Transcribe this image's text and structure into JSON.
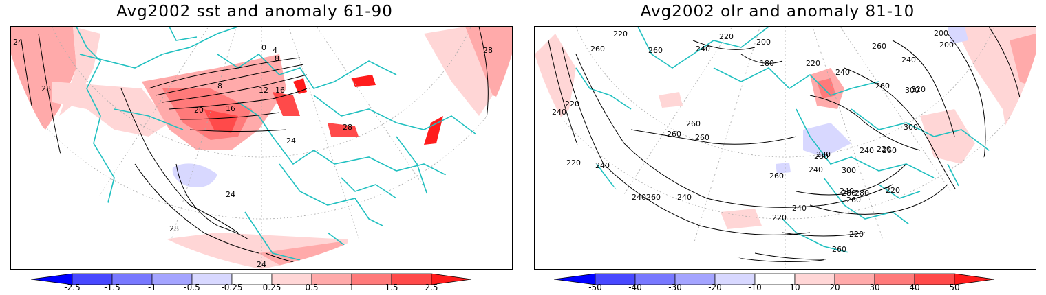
{
  "colors": {
    "coast": "#20c0c0",
    "contour": "#000000",
    "neg": [
      "#0000ff",
      "#4848ff",
      "#7878ff",
      "#a4a4ff",
      "#d8d8ff"
    ],
    "pos": [
      "#ffd6d6",
      "#ffaaaa",
      "#ff7a7a",
      "#ff4a4a",
      "#ff1c1c"
    ]
  },
  "panels": [
    {
      "title": "Avg2002 sst and anomaly 61-90",
      "colorbar": {
        "labels": [
          "-2.5",
          "-1.5",
          "-1",
          "-0.5",
          "-0.25",
          "0.25",
          "0.5",
          "1",
          "1.5",
          "2.5"
        ]
      },
      "contour_labels": [
        "24",
        "28",
        "0",
        "4",
        "8",
        "8",
        "12",
        "16",
        "20",
        "16",
        "28",
        "24",
        "24",
        "28",
        "24"
      ]
    },
    {
      "title": "Avg2002 olr and anomaly 81-10",
      "colorbar": {
        "labels": [
          "-50",
          "-40",
          "-30",
          "-20",
          "-10",
          "10",
          "20",
          "30",
          "40",
          "50"
        ]
      },
      "contour_labels": [
        "220",
        "260",
        "260",
        "240",
        "200",
        "220",
        "180",
        "220",
        "200",
        "240",
        "260",
        "240",
        "260",
        "220",
        "240",
        "260",
        "280",
        "300",
        "320",
        "300",
        "280",
        "260",
        "240",
        "220",
        "200",
        "260",
        "220",
        "240",
        "260",
        "240",
        "260",
        "280",
        "300",
        "280",
        "260",
        "240",
        "220",
        "240",
        "240",
        "220",
        "260",
        "240",
        "220",
        "260"
      ]
    }
  ]
}
